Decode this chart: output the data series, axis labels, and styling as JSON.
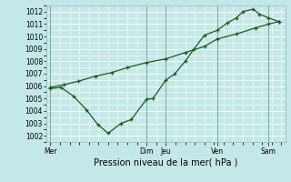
{
  "xlabel": "Pression niveau de la mer( hPa )",
  "bg_color": "#c4e8e8",
  "grid_color": "#ffffff",
  "line_color": "#1a5c1a",
  "ylim": [
    1001.5,
    1012.5
  ],
  "yticks": [
    1002,
    1003,
    1004,
    1005,
    1006,
    1007,
    1008,
    1009,
    1010,
    1011,
    1012
  ],
  "day_labels": [
    "Mer",
    "Dim",
    "Jeu",
    "Ven",
    "Sam"
  ],
  "day_positions": [
    0,
    7.5,
    9,
    13,
    17
  ],
  "vline_positions": [
    0,
    7.5,
    9,
    13,
    17
  ],
  "xlim": [
    -0.3,
    18.3
  ],
  "series1_x": [
    0,
    0.8,
    1.8,
    2.8,
    3.7,
    4.5,
    5.5,
    6.3,
    7.5,
    8.0,
    9.0,
    9.7,
    10.5,
    11.2,
    12.0,
    13.0,
    13.8,
    14.5,
    15.0,
    15.8,
    16.3,
    17.0,
    17.8
  ],
  "series1_y": [
    1005.8,
    1005.9,
    1005.2,
    1004.1,
    1002.9,
    1002.2,
    1003.0,
    1003.3,
    1004.95,
    1005.0,
    1006.5,
    1007.0,
    1008.0,
    1009.0,
    1010.1,
    1010.5,
    1011.1,
    1011.5,
    1012.0,
    1012.2,
    1011.8,
    1011.5,
    1011.2
  ],
  "series2_x": [
    0,
    1.0,
    2.2,
    3.5,
    4.8,
    6.0,
    7.5,
    9.0,
    10.5,
    12.0,
    13.0,
    14.5,
    16.0,
    17.0,
    17.8
  ],
  "series2_y": [
    1005.9,
    1006.1,
    1006.4,
    1006.8,
    1007.1,
    1007.5,
    1007.9,
    1008.2,
    1008.7,
    1009.2,
    1009.8,
    1010.2,
    1010.7,
    1011.0,
    1011.2
  ]
}
